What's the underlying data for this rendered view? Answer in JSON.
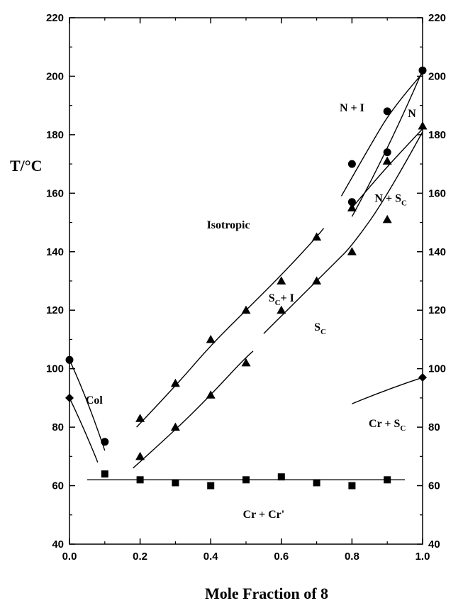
{
  "chart_data": {
    "type": "scatter",
    "xlabel": "Mole Fraction of 8",
    "ylabel": "T/°C",
    "xlim": [
      0.0,
      1.0
    ],
    "ylim": [
      40,
      220
    ],
    "xticks": [
      "0.0",
      "0.2",
      "0.4",
      "0.6",
      "0.8",
      "1.0"
    ],
    "yticks": [
      "40",
      "60",
      "80",
      "100",
      "120",
      "140",
      "160",
      "180",
      "200",
      "220"
    ],
    "grid": false,
    "series": [
      {
        "marker": "circle",
        "points": [
          [
            0.0,
            103
          ],
          [
            0.1,
            75
          ],
          [
            0.8,
            170
          ],
          [
            0.8,
            157
          ],
          [
            0.9,
            188
          ],
          [
            0.9,
            174
          ],
          [
            1.0,
            202
          ]
        ]
      },
      {
        "marker": "diamond",
        "points": [
          [
            0.0,
            90
          ],
          [
            1.0,
            97
          ]
        ]
      },
      {
        "marker": "triangle",
        "points": [
          [
            0.2,
            83
          ],
          [
            0.2,
            70
          ],
          [
            0.3,
            95
          ],
          [
            0.3,
            80
          ],
          [
            0.4,
            110
          ],
          [
            0.4,
            91
          ],
          [
            0.5,
            120
          ],
          [
            0.5,
            102
          ],
          [
            0.6,
            130
          ],
          [
            0.6,
            120
          ],
          [
            0.7,
            145
          ],
          [
            0.7,
            130
          ],
          [
            0.8,
            155
          ],
          [
            0.8,
            140
          ],
          [
            0.9,
            171
          ],
          [
            0.9,
            151
          ],
          [
            1.0,
            183
          ]
        ]
      },
      {
        "marker": "square",
        "points": [
          [
            0.1,
            64
          ],
          [
            0.2,
            62
          ],
          [
            0.3,
            61
          ],
          [
            0.4,
            60
          ],
          [
            0.5,
            62
          ],
          [
            0.6,
            63
          ],
          [
            0.7,
            61
          ],
          [
            0.8,
            60
          ],
          [
            0.9,
            62
          ]
        ]
      }
    ],
    "boundaries": [
      [
        [
          0.0,
          103
        ],
        [
          0.05,
          90
        ],
        [
          0.1,
          72
        ]
      ],
      [
        [
          0.0,
          90
        ],
        [
          0.04,
          80
        ],
        [
          0.08,
          68
        ]
      ],
      [
        [
          0.19,
          80
        ],
        [
          0.3,
          94
        ],
        [
          0.4,
          108
        ],
        [
          0.5,
          120
        ],
        [
          0.6,
          132
        ],
        [
          0.7,
          145
        ],
        [
          0.72,
          148
        ]
      ],
      [
        [
          0.18,
          66
        ],
        [
          0.3,
          79
        ],
        [
          0.4,
          91
        ],
        [
          0.5,
          104
        ],
        [
          0.52,
          106
        ]
      ],
      [
        [
          0.55,
          112
        ],
        [
          0.65,
          124
        ],
        [
          0.75,
          136
        ],
        [
          0.8,
          142
        ],
        [
          0.9,
          159
        ],
        [
          1.0,
          181
        ]
      ],
      [
        [
          0.77,
          159
        ],
        [
          0.85,
          176
        ],
        [
          0.92,
          190
        ],
        [
          1.0,
          201
        ]
      ],
      [
        [
          0.8,
          155
        ],
        [
          0.87,
          165
        ],
        [
          0.93,
          173
        ],
        [
          1.0,
          182
        ]
      ],
      [
        [
          0.8,
          152
        ],
        [
          0.9,
          174
        ],
        [
          1.0,
          202
        ]
      ],
      [
        [
          0.8,
          88
        ],
        [
          0.9,
          93
        ],
        [
          1.0,
          97
        ]
      ],
      [
        [
          0.05,
          62
        ],
        [
          0.5,
          62
        ],
        [
          0.95,
          62
        ]
      ]
    ],
    "annotations": [
      {
        "text": "Isotropic",
        "x": 0.45,
        "y": 148
      },
      {
        "text": "N + I",
        "x": 0.8,
        "y": 188
      },
      {
        "text": "N",
        "x": 0.97,
        "y": 186
      },
      {
        "text": "N + S",
        "sub": "C",
        "x": 0.91,
        "y": 157
      },
      {
        "text": "S",
        "sub": "C",
        "extra": "+ I",
        "x": 0.6,
        "y": 123
      },
      {
        "text": "S",
        "sub": "C",
        "x": 0.71,
        "y": 113
      },
      {
        "text": "Col",
        "x": 0.07,
        "y": 88
      },
      {
        "text": "Cr + S",
        "sub": "C",
        "x": 0.9,
        "y": 80
      },
      {
        "text": "Cr + Cr'",
        "x": 0.55,
        "y": 49
      }
    ]
  }
}
